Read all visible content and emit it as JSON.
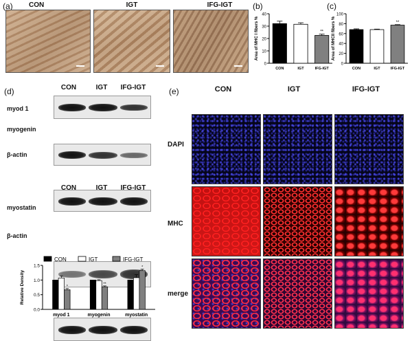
{
  "panels": {
    "a": {
      "label": "(a)",
      "groups": [
        "CON",
        "IGT",
        "IFG-IGT"
      ]
    },
    "b": {
      "label": "(b)"
    },
    "c": {
      "label": "(c)"
    },
    "d": {
      "label": "(d)",
      "top_groups": [
        "CON",
        "IGT",
        "IFG-IGT"
      ],
      "top_rows": [
        "myod 1",
        "myogenin",
        "β-actin"
      ],
      "bottom_groups": [
        "CON",
        "IGT",
        "IFG-IGT"
      ],
      "bottom_rows": [
        "myostatin",
        "β-actin"
      ]
    },
    "e": {
      "label": "(e)",
      "groups": [
        "CON",
        "IGT",
        "IFG-IGT"
      ],
      "rows": [
        "DAPI",
        "MHC",
        "merge"
      ]
    }
  },
  "chart_data": [
    {
      "id": "b",
      "type": "bar",
      "categories": [
        "CON",
        "IGT",
        "IFG-IGT"
      ],
      "values": [
        32,
        31.5,
        22.5
      ],
      "errors": [
        2,
        1.2,
        1
      ],
      "ylabel": "Area of MHC I  fibers %",
      "ylim": [
        0,
        40
      ],
      "yticks": [
        0,
        10,
        20,
        30,
        40
      ],
      "annotations": [
        "",
        "",
        "**"
      ],
      "colors": [
        "#000000",
        "#ffffff",
        "#808080"
      ]
    },
    {
      "id": "c",
      "type": "bar",
      "categories": [
        "CON",
        "IGT",
        "IFG-IGT"
      ],
      "values": [
        68,
        68,
        77
      ],
      "errors": [
        1.5,
        1,
        1
      ],
      "ylabel": "Area of MHCII  fibers %",
      "ylim": [
        0,
        100
      ],
      "yticks": [
        0,
        20,
        40,
        60,
        80,
        100
      ],
      "annotations": [
        "",
        "",
        "**"
      ],
      "colors": [
        "#000000",
        "#ffffff",
        "#808080"
      ]
    },
    {
      "id": "d-density",
      "type": "bar",
      "categories": [
        "myod 1",
        "myogenin",
        "myostatin"
      ],
      "series": [
        {
          "name": "CON",
          "values": [
            1.0,
            1.0,
            1.0
          ],
          "errors": [
            0,
            0,
            0
          ],
          "color": "#000000"
        },
        {
          "name": "IGT",
          "values": [
            1.07,
            0.98,
            1.08
          ],
          "errors": [
            0.07,
            0.03,
            0.1
          ],
          "color": "#ffffff"
        },
        {
          "name": "IFG-IGT",
          "values": [
            0.67,
            0.77,
            1.32
          ],
          "errors": [
            0.04,
            0.03,
            0.05
          ],
          "color": "#808080"
        }
      ],
      "annotations": [
        [
          "",
          "",
          "*"
        ],
        [
          "",
          "",
          "**"
        ],
        [
          "",
          "",
          "*"
        ]
      ],
      "ylabel": "Relative Density",
      "ylim": [
        0,
        1.5
      ],
      "yticks": [
        0.0,
        0.5,
        1.0,
        1.5
      ],
      "legend": "top"
    }
  ]
}
